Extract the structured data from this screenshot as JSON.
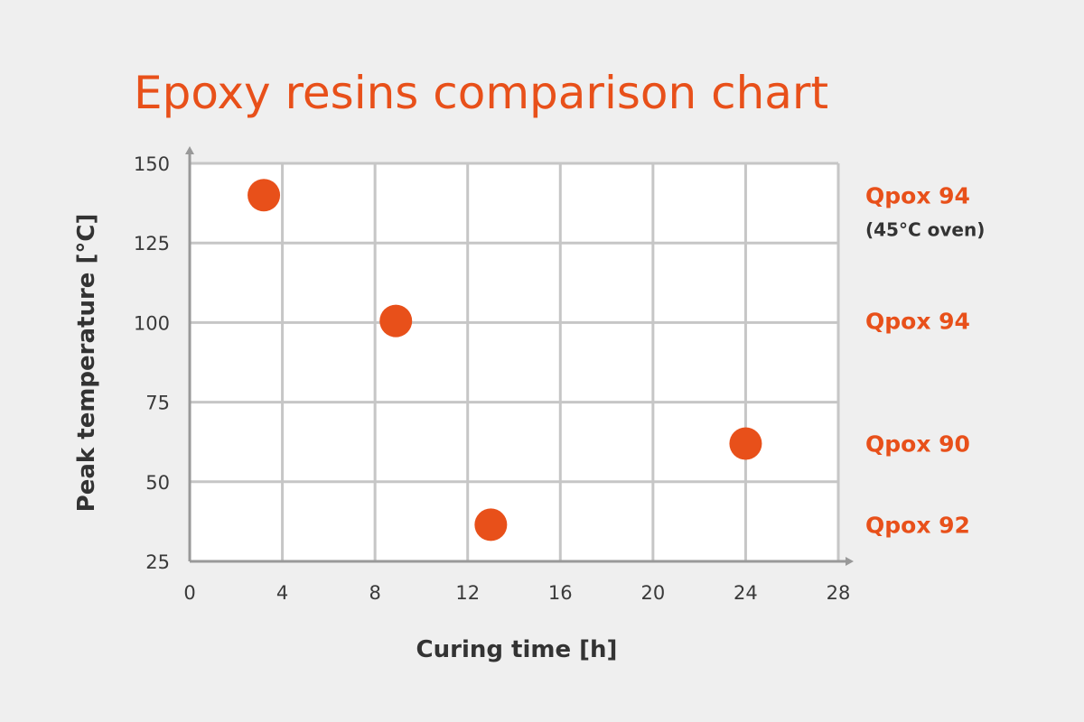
{
  "colors": {
    "accent": "#e8501a",
    "text": "#333333",
    "grid": "#c6c6c6",
    "axis": "#999999",
    "plot_background": "#ffffff",
    "page_background": "#efefef"
  },
  "chart_data": {
    "type": "scatter",
    "title": "Epoxy resins comparison chart",
    "xlabel": "Curing time [h]",
    "ylabel": "Peak temperature [°C]",
    "xlim": [
      0,
      28
    ],
    "ylim": [
      25,
      150
    ],
    "xticks": [
      "0",
      "4",
      "8",
      "12",
      "16",
      "20",
      "24",
      "28"
    ],
    "yticks": [
      "25",
      "50",
      "75",
      "100",
      "125",
      "150"
    ],
    "grid": true,
    "points": [
      {
        "name": "Qpox 94",
        "note": "(45°C oven)",
        "x": 3.2,
        "y": 140
      },
      {
        "name": "Qpox 94",
        "x": 8.9,
        "y": 100.5
      },
      {
        "name": "Qpox 90",
        "x": 24,
        "y": 62
      },
      {
        "name": "Qpox 92",
        "x": 13,
        "y": 36.5
      }
    ]
  }
}
